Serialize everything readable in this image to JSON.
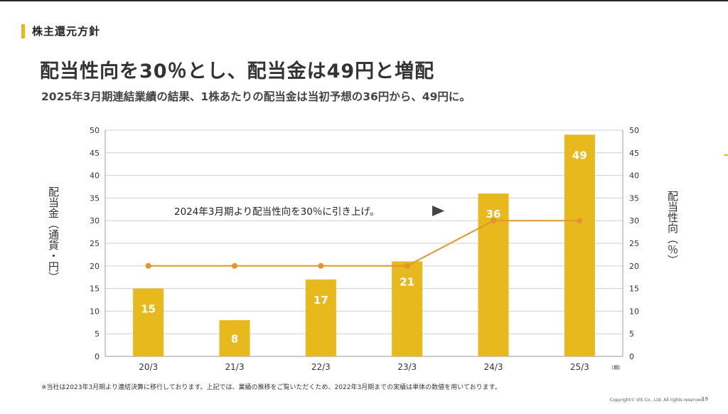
{
  "header": {
    "section": "株主還元方針",
    "headline": "配当性向を30％とし、配当金は49円と増配",
    "subline": "2025年3月期連結業績の結果、1株あたりの配当金は当初予想の36円から、49円に。"
  },
  "footer": {
    "note": "※当社は2023年3月期より連結決算に移行しております。上記では、業績の推移をご覧いただくため、2022年3月期までの実績は単体の数値を用いております。",
    "copyright": "Copyright© VIS Co., Ltd. All rights reserved.",
    "page": "19"
  },
  "chart_data": {
    "type": "bar",
    "categories": [
      "20/3",
      "21/3",
      "22/3",
      "23/3",
      "24/3",
      "25/3"
    ],
    "series": [
      {
        "name": "配当金（通貨・円）",
        "type": "bar",
        "axis": "left",
        "values": [
          15,
          8,
          17,
          21,
          36,
          49
        ],
        "data_labels": [
          "15",
          "8",
          "17",
          "21",
          "36",
          "49"
        ],
        "color": "#e8b91d"
      },
      {
        "name": "配当性向（％）",
        "type": "line",
        "axis": "right",
        "values": [
          20,
          20,
          20,
          20,
          30,
          30
        ],
        "color": "#e0962d"
      }
    ],
    "ylabel": "配当金（通貨・円）",
    "y2label": "配当性向（％）",
    "xunit": "（期）",
    "ylim": [
      0,
      50
    ],
    "y2lim": [
      0,
      50
    ],
    "yticks": [
      "0",
      "5",
      "10",
      "15",
      "20",
      "25",
      "30",
      "35",
      "40",
      "45",
      "50"
    ],
    "grid": true,
    "annotation": "2024年3月期より配当性向を30％に引き上げ。",
    "annotation_icon": "right-triangle-arrow-icon",
    "colors": {
      "bar": "#e8b91d",
      "line": "#e0962d",
      "grid": "#cfcfcf"
    }
  }
}
